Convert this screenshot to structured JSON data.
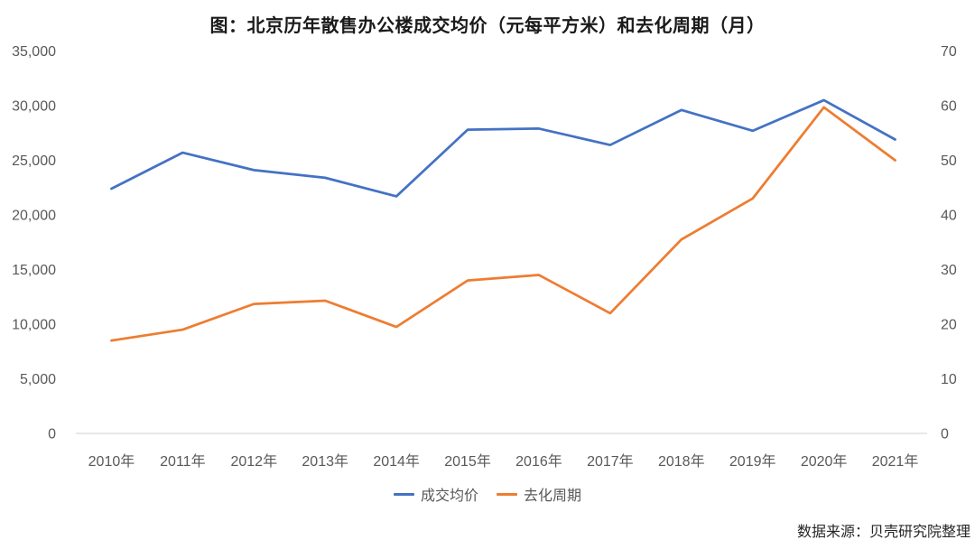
{
  "title": "图：北京历年散售办公楼成交均价（元每平方米）和去化周期（月）",
  "source": "数据来源：贝壳研究院整理",
  "colors": {
    "price_line": "#4472C4",
    "cycle_line": "#ED7D31",
    "axis_text": "#595959",
    "gridline": "#D9D9D9",
    "title_text": "#1a1a1a"
  },
  "chart_data": {
    "type": "line",
    "title": "图：北京历年散售办公楼成交均价（元每平方米）和去化周期（月）",
    "categories": [
      "2010年",
      "2011年",
      "2012年",
      "2013年",
      "2014年",
      "2015年",
      "2016年",
      "2017年",
      "2018年",
      "2019年",
      "2020年",
      "2021年"
    ],
    "series": [
      {
        "name": "成交均价",
        "axis": "left",
        "color": "#4472C4",
        "values": [
          22400,
          25700,
          24100,
          23400,
          21700,
          27800,
          27900,
          26400,
          29600,
          27700,
          30500,
          26900
        ]
      },
      {
        "name": "去化周期",
        "axis": "right",
        "color": "#ED7D31",
        "values": [
          17,
          19,
          23.7,
          24.3,
          19.5,
          28,
          29,
          22,
          35.5,
          43,
          59.7,
          50
        ]
      }
    ],
    "left_axis": {
      "min": 0,
      "max": 35000,
      "ticks": [
        0,
        5000,
        10000,
        15000,
        20000,
        25000,
        30000,
        35000
      ],
      "tick_labels": [
        "0",
        "5,000",
        "10,000",
        "15,000",
        "20,000",
        "25,000",
        "30,000",
        "35,000"
      ]
    },
    "right_axis": {
      "min": 0,
      "max": 70,
      "ticks": [
        0,
        10,
        20,
        30,
        40,
        50,
        60,
        70
      ],
      "tick_labels": [
        "0",
        "10",
        "20",
        "30",
        "40",
        "50",
        "60",
        "70"
      ]
    },
    "grid": "baseline-only",
    "legend_position": "bottom"
  }
}
